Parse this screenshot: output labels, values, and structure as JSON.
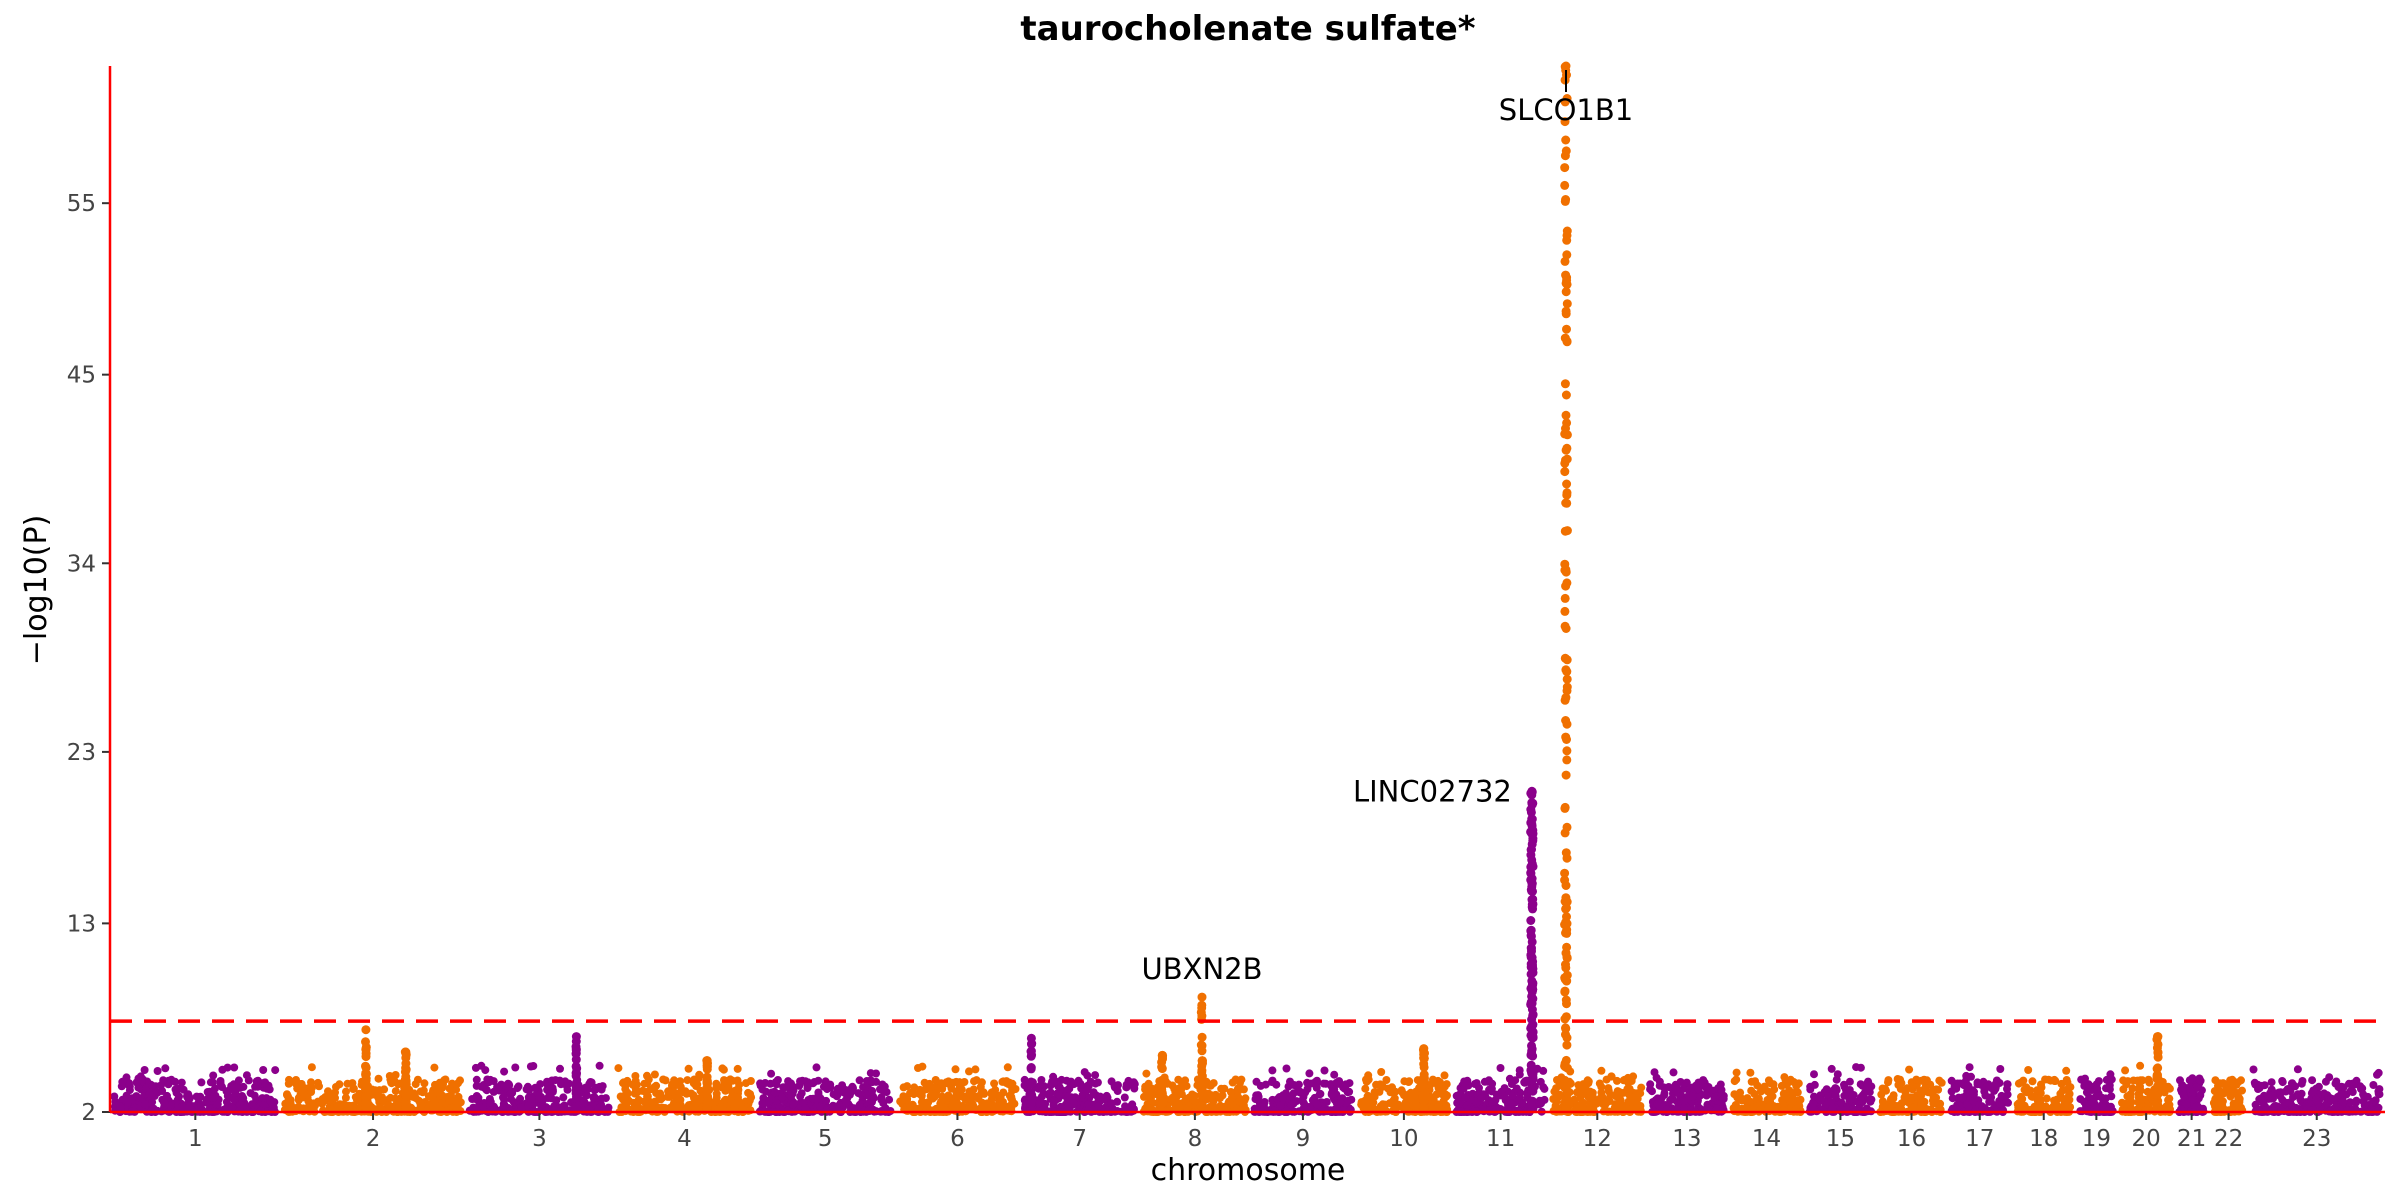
{
  "chart_data": {
    "type": "scatter",
    "subtype": "manhattan",
    "title": "taurocholenate sulfate*",
    "xlabel": "chromosome",
    "ylabel": "−log10(P)",
    "ylim": [
      2,
      63
    ],
    "yticks": [
      2,
      13,
      23,
      34,
      45,
      55
    ],
    "grid": false,
    "legend": "none",
    "significance_threshold": 7.3,
    "colors": {
      "odd": "#8B008B",
      "even": "#F07000",
      "threshold": "#FF0000",
      "axis": "#FF0000"
    },
    "chromosomes": [
      {
        "label": "1",
        "start": 0.0,
        "end": 6.0
      },
      {
        "label": "2",
        "start": 6.0,
        "end": 12.5
      },
      {
        "label": "3",
        "start": 12.5,
        "end": 17.7
      },
      {
        "label": "4",
        "start": 17.7,
        "end": 22.7
      },
      {
        "label": "5",
        "start": 22.7,
        "end": 27.6
      },
      {
        "label": "6",
        "start": 27.6,
        "end": 32.0
      },
      {
        "label": "7",
        "start": 32.0,
        "end": 36.2
      },
      {
        "label": "8",
        "start": 36.2,
        "end": 40.1
      },
      {
        "label": "9",
        "start": 40.1,
        "end": 43.8
      },
      {
        "label": "10",
        "start": 43.8,
        "end": 47.2
      },
      {
        "label": "11",
        "start": 47.2,
        "end": 50.6
      },
      {
        "label": "12",
        "start": 50.6,
        "end": 54.0
      },
      {
        "label": "13",
        "start": 54.0,
        "end": 56.9
      },
      {
        "label": "14",
        "start": 56.9,
        "end": 59.6
      },
      {
        "label": "15",
        "start": 59.6,
        "end": 62.1
      },
      {
        "label": "16",
        "start": 62.1,
        "end": 64.6
      },
      {
        "label": "17",
        "start": 64.6,
        "end": 66.9
      },
      {
        "label": "18",
        "start": 66.9,
        "end": 69.1
      },
      {
        "label": "19",
        "start": 69.1,
        "end": 70.6
      },
      {
        "label": "20",
        "start": 70.6,
        "end": 72.6
      },
      {
        "label": "21",
        "start": 72.6,
        "end": 73.8
      },
      {
        "label": "22",
        "start": 73.8,
        "end": 75.2
      },
      {
        "label": "23",
        "start": 75.2,
        "end": 80.0
      }
    ],
    "peaks": [
      {
        "chr": "2",
        "x": 9.0,
        "max": 6.8,
        "width": 0.15
      },
      {
        "chr": "2",
        "x": 10.4,
        "max": 5.5,
        "width": 0.15
      },
      {
        "chr": "3",
        "x": 16.4,
        "max": 6.4,
        "width": 0.1
      },
      {
        "chr": "4",
        "x": 21.0,
        "max": 5.0,
        "width": 0.1
      },
      {
        "chr": "7",
        "x": 32.4,
        "max": 6.3,
        "width": 0.1
      },
      {
        "chr": "8",
        "x": 37.0,
        "max": 5.3,
        "width": 0.2
      },
      {
        "chr": "8",
        "x": 38.4,
        "max": 8.7,
        "width": 0.2
      },
      {
        "chr": "10",
        "x": 46.2,
        "max": 5.7,
        "width": 0.2
      },
      {
        "chr": "11",
        "x": 50.0,
        "max": 20.7,
        "width": 0.35
      },
      {
        "chr": "12",
        "x": 51.2,
        "max": 63.0,
        "width": 0.4
      },
      {
        "chr": "20",
        "x": 72.0,
        "max": 6.4,
        "width": 0.25
      }
    ],
    "annotations": [
      {
        "label": "SLCO1B1",
        "x": 51.2,
        "y": 63.0
      },
      {
        "label": "LINC02732",
        "x": 50.0,
        "y": 20.7
      },
      {
        "label": "UBXN2B",
        "x": 38.4,
        "y": 8.7
      }
    ]
  }
}
